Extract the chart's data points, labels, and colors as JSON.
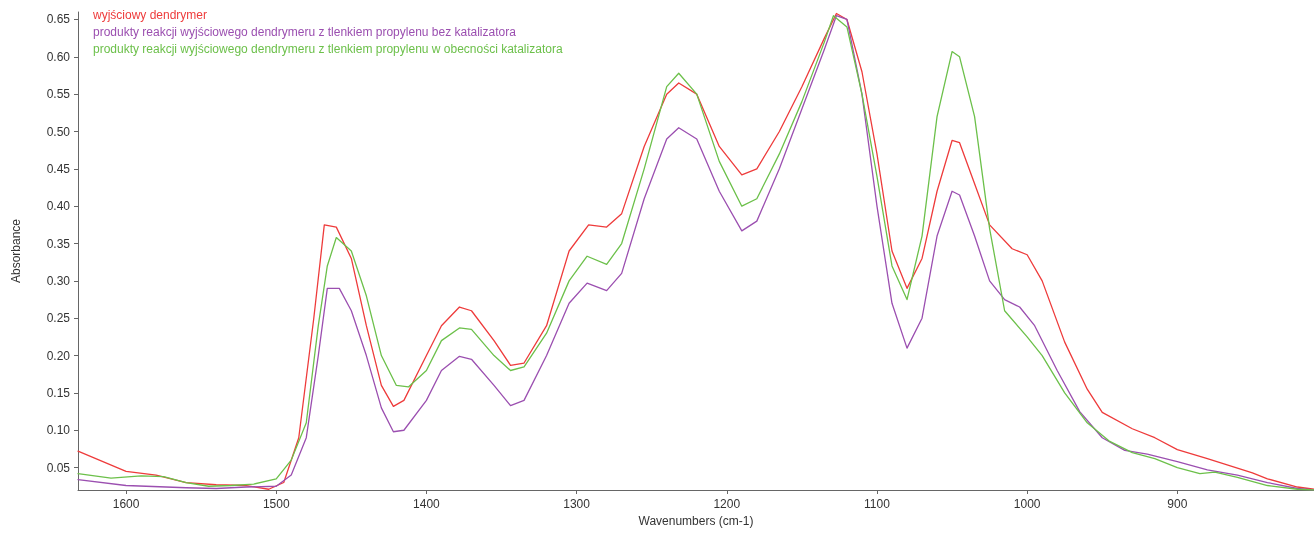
{
  "chart_data": {
    "type": "line",
    "xlabel": "Wavenumbers (cm-1)",
    "ylabel": "Absorbance",
    "xlim": [
      1632,
      809
    ],
    "ylim": [
      0.02,
      0.66
    ],
    "xticks": [
      1600,
      1500,
      1400,
      1300,
      1200,
      1100,
      1000,
      900
    ],
    "yticks": [
      {
        "value": 0.05,
        "label": "0.05"
      },
      {
        "value": 0.1,
        "label": "0.10"
      },
      {
        "value": 0.15,
        "label": "0.15"
      },
      {
        "value": 0.2,
        "label": "0.20"
      },
      {
        "value": 0.25,
        "label": "0.25"
      },
      {
        "value": 0.3,
        "label": "0.30"
      },
      {
        "value": 0.35,
        "label": "0.35"
      },
      {
        "value": 0.4,
        "label": "0.40"
      },
      {
        "value": 0.45,
        "label": "0.45"
      },
      {
        "value": 0.5,
        "label": "0.50"
      },
      {
        "value": 0.55,
        "label": "0.55"
      },
      {
        "value": 0.6,
        "label": "0.60"
      },
      {
        "value": 0.65,
        "label": "0.65"
      }
    ],
    "grid": false,
    "legend": "top left",
    "marker": "none",
    "line_style": "solid",
    "series": [
      {
        "name": "wyjściowy dendrymer",
        "color": "#ee3b3b",
        "x": [
          1632,
          1600,
          1580,
          1560,
          1540,
          1520,
          1505,
          1495,
          1485,
          1475,
          1468,
          1460,
          1450,
          1440,
          1430,
          1422,
          1415,
          1400,
          1390,
          1378,
          1370,
          1355,
          1344,
          1335,
          1320,
          1305,
          1292,
          1280,
          1270,
          1255,
          1240,
          1232,
          1220,
          1205,
          1190,
          1180,
          1165,
          1150,
          1135,
          1127,
          1120,
          1110,
          1100,
          1090,
          1080,
          1070,
          1060,
          1050,
          1045,
          1035,
          1025,
          1010,
          1000,
          990,
          975,
          960,
          950,
          930,
          915,
          900,
          880,
          850,
          840,
          820,
          809
        ],
        "values": [
          0.072,
          0.045,
          0.04,
          0.03,
          0.027,
          0.026,
          0.021,
          0.03,
          0.09,
          0.25,
          0.375,
          0.372,
          0.33,
          0.24,
          0.16,
          0.132,
          0.14,
          0.2,
          0.24,
          0.265,
          0.26,
          0.22,
          0.187,
          0.19,
          0.24,
          0.34,
          0.375,
          0.372,
          0.39,
          0.48,
          0.55,
          0.565,
          0.55,
          0.48,
          0.442,
          0.45,
          0.5,
          0.56,
          0.625,
          0.658,
          0.65,
          0.58,
          0.47,
          0.34,
          0.29,
          0.33,
          0.42,
          0.488,
          0.485,
          0.43,
          0.375,
          0.343,
          0.335,
          0.3,
          0.218,
          0.155,
          0.124,
          0.102,
          0.09,
          0.074,
          0.062,
          0.043,
          0.035,
          0.024,
          0.021
        ]
      },
      {
        "name": "produkty reakcji wyjściowego dendrymeru z tlenkiem propylenu bez katalizatora",
        "color": "#9b4fb0",
        "x": [
          1632,
          1600,
          1560,
          1540,
          1520,
          1500,
          1490,
          1480,
          1472,
          1466,
          1458,
          1450,
          1440,
          1430,
          1422,
          1415,
          1400,
          1390,
          1378,
          1370,
          1355,
          1344,
          1335,
          1320,
          1305,
          1293,
          1280,
          1270,
          1255,
          1240,
          1232,
          1220,
          1205,
          1190,
          1180,
          1165,
          1150,
          1135,
          1127,
          1120,
          1110,
          1100,
          1090,
          1080,
          1070,
          1060,
          1050,
          1045,
          1035,
          1025,
          1015,
          1005,
          995,
          980,
          965,
          950,
          935,
          920,
          900,
          880,
          860,
          840,
          820,
          809
        ],
        "values": [
          0.034,
          0.026,
          0.023,
          0.022,
          0.024,
          0.025,
          0.04,
          0.09,
          0.2,
          0.29,
          0.29,
          0.26,
          0.2,
          0.13,
          0.098,
          0.1,
          0.14,
          0.18,
          0.199,
          0.195,
          0.16,
          0.133,
          0.14,
          0.2,
          0.27,
          0.297,
          0.287,
          0.31,
          0.41,
          0.49,
          0.505,
          0.49,
          0.42,
          0.367,
          0.38,
          0.45,
          0.53,
          0.61,
          0.655,
          0.65,
          0.55,
          0.4,
          0.27,
          0.21,
          0.25,
          0.36,
          0.42,
          0.415,
          0.36,
          0.3,
          0.275,
          0.265,
          0.24,
          0.18,
          0.125,
          0.09,
          0.073,
          0.068,
          0.058,
          0.047,
          0.04,
          0.03,
          0.022,
          0.02
        ]
      },
      {
        "name": "produkty reakcji wyjściowego dendrymeru z tlenkiem propylenu w obecności katalizatora",
        "color": "#6cc04a",
        "x": [
          1632,
          1610,
          1590,
          1575,
          1560,
          1545,
          1530,
          1515,
          1500,
          1490,
          1480,
          1472,
          1466,
          1460,
          1450,
          1440,
          1430,
          1420,
          1412,
          1400,
          1390,
          1378,
          1370,
          1355,
          1344,
          1335,
          1320,
          1305,
          1293,
          1280,
          1270,
          1255,
          1240,
          1232,
          1220,
          1205,
          1190,
          1180,
          1165,
          1150,
          1135,
          1129,
          1120,
          1110,
          1100,
          1090,
          1080,
          1070,
          1060,
          1050,
          1045,
          1035,
          1025,
          1015,
          1000,
          990,
          975,
          960,
          945,
          930,
          915,
          900,
          885,
          875,
          860,
          840,
          820,
          809
        ],
        "values": [
          0.042,
          0.036,
          0.039,
          0.038,
          0.03,
          0.025,
          0.026,
          0.028,
          0.035,
          0.06,
          0.11,
          0.24,
          0.32,
          0.358,
          0.34,
          0.28,
          0.2,
          0.16,
          0.158,
          0.18,
          0.22,
          0.237,
          0.235,
          0.2,
          0.18,
          0.185,
          0.23,
          0.3,
          0.333,
          0.322,
          0.35,
          0.45,
          0.56,
          0.578,
          0.55,
          0.46,
          0.4,
          0.41,
          0.47,
          0.54,
          0.62,
          0.655,
          0.64,
          0.55,
          0.44,
          0.32,
          0.275,
          0.36,
          0.52,
          0.607,
          0.6,
          0.52,
          0.37,
          0.26,
          0.225,
          0.2,
          0.15,
          0.11,
          0.085,
          0.07,
          0.062,
          0.05,
          0.042,
          0.044,
          0.037,
          0.026,
          0.021,
          0.02
        ]
      }
    ]
  }
}
